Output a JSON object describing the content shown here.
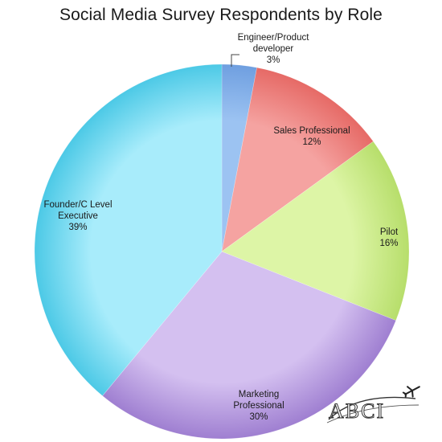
{
  "chart_data": {
    "type": "pie",
    "title": "Social Media Survey Respondents by Role",
    "slices": [
      {
        "label": [
          "Engineer/Product",
          "developer"
        ],
        "percent_label": "3%",
        "value": 3,
        "color": "#9cc3f2",
        "color_dark": "#6f9fe0"
      },
      {
        "label": [
          "Sales Professional"
        ],
        "percent_label": "12%",
        "value": 12,
        "color": "#f5a3a1",
        "color_dark": "#e66a66"
      },
      {
        "label": [
          "Pilot"
        ],
        "percent_label": "16%",
        "value": 16,
        "color": "#ddf5a6",
        "color_dark": "#b7de6b"
      },
      {
        "label": [
          "Marketing",
          "Professional"
        ],
        "percent_label": "30%",
        "value": 30,
        "color": "#d4c0f0",
        "color_dark": "#9f7fd1"
      },
      {
        "label": [
          "Founder/C Level",
          "Executive"
        ],
        "percent_label": "39%",
        "value": 39,
        "color": "#a8ecfb",
        "color_dark": "#4cc9e6"
      }
    ],
    "start_angle_deg": 0,
    "direction": "clockwise"
  },
  "logo": {
    "text": "ABCI",
    "icon": "airplane-icon"
  }
}
